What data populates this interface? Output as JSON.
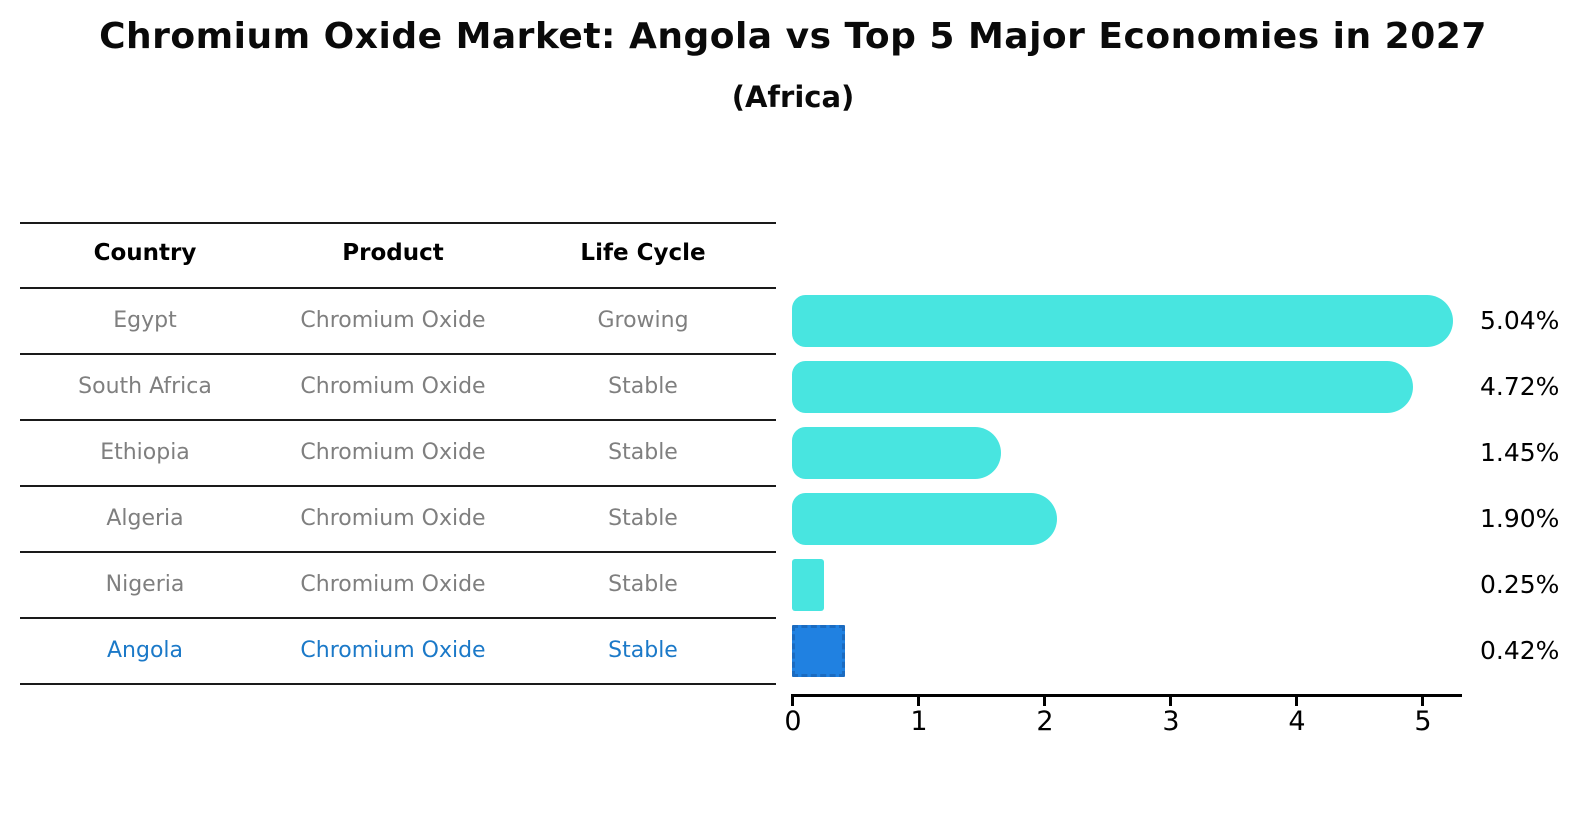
{
  "title": "Chromium Oxide Market: Angola vs Top 5 Major Economies in 2027",
  "subtitle": "(Africa)",
  "table": {
    "headers": [
      "Country",
      "Product",
      "Life Cycle"
    ],
    "rows": [
      {
        "country": "Egypt",
        "product": "Chromium Oxide",
        "life_cycle": "Growing",
        "highlight": false
      },
      {
        "country": "South Africa",
        "product": "Chromium Oxide",
        "life_cycle": "Stable",
        "highlight": false
      },
      {
        "country": "Ethiopia",
        "product": "Chromium Oxide",
        "life_cycle": "Stable",
        "highlight": false
      },
      {
        "country": "Algeria",
        "product": "Chromium Oxide",
        "life_cycle": "Stable",
        "highlight": false
      },
      {
        "country": "Nigeria",
        "product": "Chromium Oxide",
        "life_cycle": "Stable",
        "highlight": false
      },
      {
        "country": "Angola",
        "product": "Chromium Oxide",
        "life_cycle": "Stable",
        "highlight": true
      }
    ]
  },
  "chart_data": {
    "type": "bar",
    "orientation": "horizontal",
    "title": "Chromium Oxide Market: Angola vs Top 5 Major Economies in 2027",
    "subtitle": "(Africa)",
    "categories": [
      "Egypt",
      "South Africa",
      "Ethiopia",
      "Algeria",
      "Nigeria",
      "Angola"
    ],
    "values": [
      5.04,
      4.72,
      1.45,
      1.9,
      0.25,
      0.42
    ],
    "value_labels": [
      "5.04%",
      "4.72%",
      "1.45%",
      "1.90%",
      "0.25%",
      "0.42%"
    ],
    "xlabel": "",
    "ylabel": "",
    "xticks": [
      0,
      1,
      2,
      3,
      4,
      5
    ],
    "xlim": [
      0,
      5.3
    ],
    "grid": false,
    "legend": false,
    "bar_color": "#48e5e0",
    "highlight_index": 5,
    "highlight_color": "#2081e1",
    "highlight_border": "#1b6bc0",
    "highlight_text_color": "#1b79c8"
  }
}
